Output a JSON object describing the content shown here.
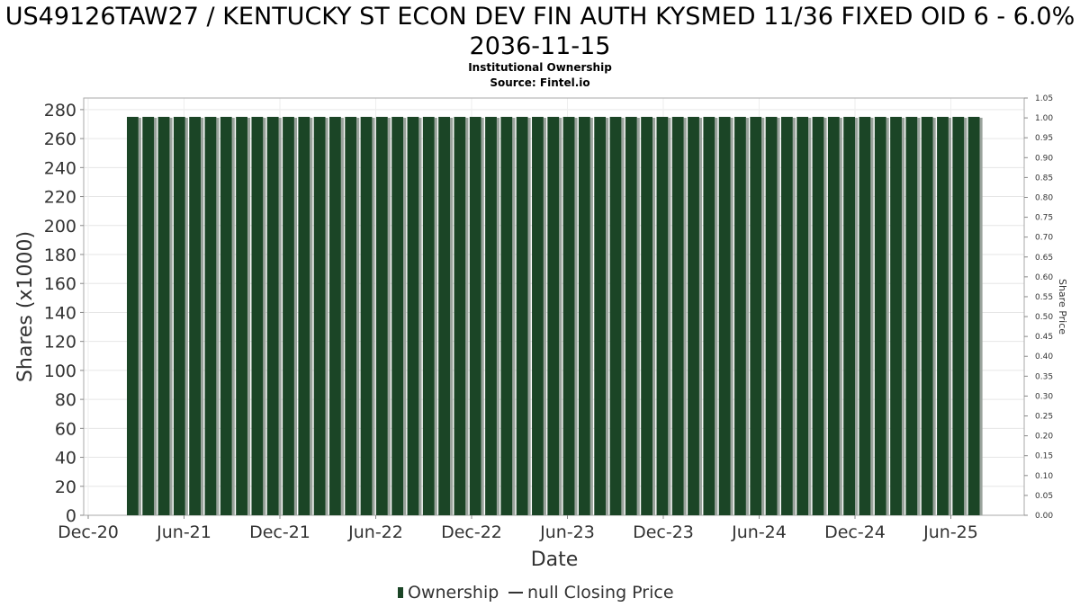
{
  "title": "US49126TAW27 / KENTUCKY ST ECON DEV FIN AUTH KYSMED 11/36 FIXED OID 6 - 6.0% 2036-11-15",
  "subtitle": "Institutional Ownership",
  "source": "Source: Fintel.io",
  "chart_data": {
    "type": "bar",
    "xlabel": "Date",
    "ylabel": "Shares (x1000)",
    "y2label": "Share Price",
    "ylim": [
      0,
      288
    ],
    "y2lim": [
      0,
      1.05
    ],
    "yticks": [
      "0",
      "20",
      "40",
      "60",
      "80",
      "100",
      "120",
      "140",
      "160",
      "180",
      "200",
      "220",
      "240",
      "260",
      "280"
    ],
    "y2ticks": [
      "0.00",
      "0.05",
      "0.10",
      "0.15",
      "0.20",
      "0.25",
      "0.30",
      "0.35",
      "0.40",
      "0.45",
      "0.50",
      "0.55",
      "0.60",
      "0.65",
      "0.70",
      "0.75",
      "0.80",
      "0.85",
      "0.90",
      "0.95",
      "1.00",
      "1.05"
    ],
    "xticks": [
      "Dec-20",
      "Jun-21",
      "Dec-21",
      "Jun-22",
      "Dec-22",
      "Jun-23",
      "Dec-23",
      "Jun-24",
      "Dec-24",
      "Jun-25"
    ],
    "grid": true,
    "legend_position": "bottom",
    "series": [
      {
        "name": "Ownership",
        "color": "#1b4526",
        "values": [
          275,
          275,
          275,
          275,
          275,
          275,
          275,
          275,
          275,
          275,
          275,
          275,
          275,
          275,
          275,
          275,
          275,
          275,
          275,
          275,
          275,
          275,
          275,
          275,
          275,
          275,
          275,
          275,
          275,
          275,
          275,
          275,
          275,
          275,
          275,
          275,
          275,
          275,
          275,
          275,
          275,
          275,
          275,
          275,
          275,
          275,
          275,
          275,
          275,
          275,
          275,
          275,
          275,
          275,
          275
        ]
      },
      {
        "name": "null Closing Price",
        "color": "#000000",
        "values": []
      }
    ]
  }
}
